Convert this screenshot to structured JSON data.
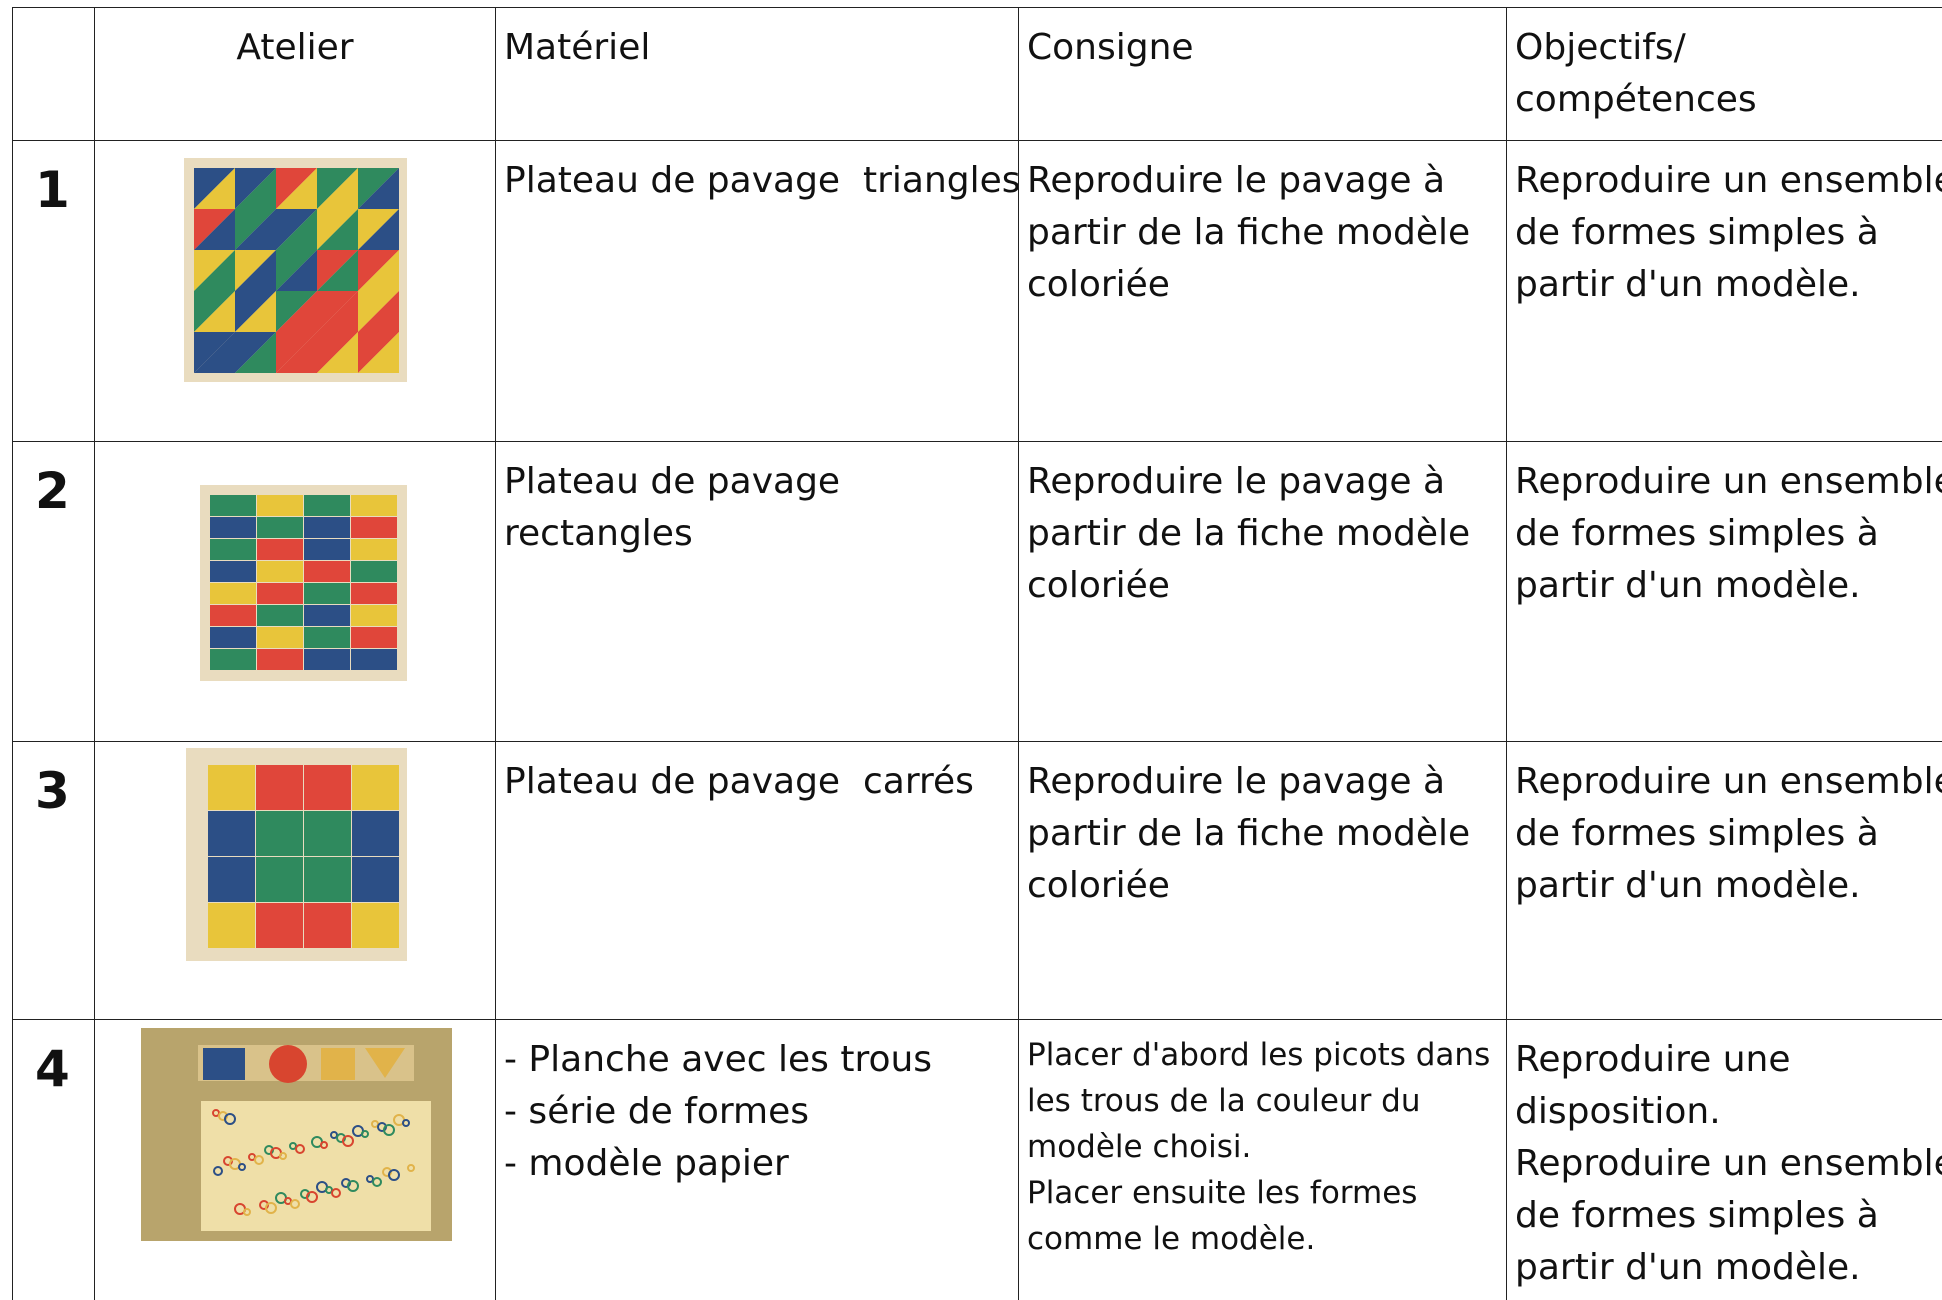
{
  "table": {
    "headers": [
      "Atelier",
      "Matériel",
      "Consigne",
      [
        "Objectifs/",
        "compétences"
      ]
    ],
    "rows": [
      {
        "number": "1",
        "materiel": [
          "Plateau de pavage  triangles"
        ],
        "consigne": [
          "Reproduire le pavage à",
          "partir de la fiche modèle",
          "coloriée"
        ],
        "objectifs": [
          "Reproduire un ensemble",
          "de formes simples à",
          "partir d'un modèle."
        ]
      },
      {
        "number": "2",
        "materiel": [
          "Plateau de pavage",
          "rectangles"
        ],
        "consigne": [
          "Reproduire le pavage à",
          "partir de la fiche modèle",
          "coloriée"
        ],
        "objectifs": [
          "Reproduire un ensemble",
          "de formes simples à",
          "partir d'un modèle."
        ]
      },
      {
        "number": "3",
        "materiel": [
          "Plateau de pavage  carrés"
        ],
        "consigne": [
          "Reproduire le pavage à",
          "partir de la fiche modèle",
          "coloriée"
        ],
        "objectifs": [
          "Reproduire un ensemble",
          "de formes simples à",
          "partir d'un modèle."
        ]
      },
      {
        "number": "4",
        "materiel": [
          "- Planche avec les trous",
          "- série de formes",
          "- modèle papier"
        ],
        "consigne": [
          "Placer d'abord les picots dans",
          "les trous de la couleur du",
          "modèle choisi.",
          "Placer ensuite les formes",
          "comme le modèle."
        ],
        "objectifs": [
          "Reproduire une",
          "disposition.",
          "Reproduire un ensemble",
          "de formes simples à",
          "partir d'un modèle."
        ]
      }
    ]
  }
}
